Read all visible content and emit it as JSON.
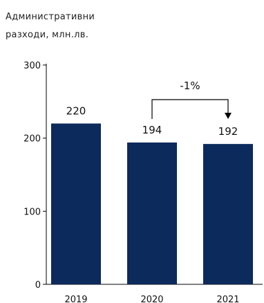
{
  "chart_data": {
    "type": "bar",
    "title_lines": [
      "Административни",
      "разходи, млн.лв."
    ],
    "categories": [
      "2019",
      "2020",
      "2021"
    ],
    "values": [
      220,
      194,
      192
    ],
    "data_labels": [
      "220",
      "194",
      "192"
    ],
    "ylim": [
      0,
      300
    ],
    "yticks": [
      0,
      100,
      200,
      300
    ],
    "ytick_labels": [
      "0",
      "100",
      "200",
      "300"
    ],
    "grid": false,
    "bar_color": "#0d2a5c",
    "annotation": {
      "label": "-1%",
      "from": "2020",
      "to": "2021"
    }
  }
}
